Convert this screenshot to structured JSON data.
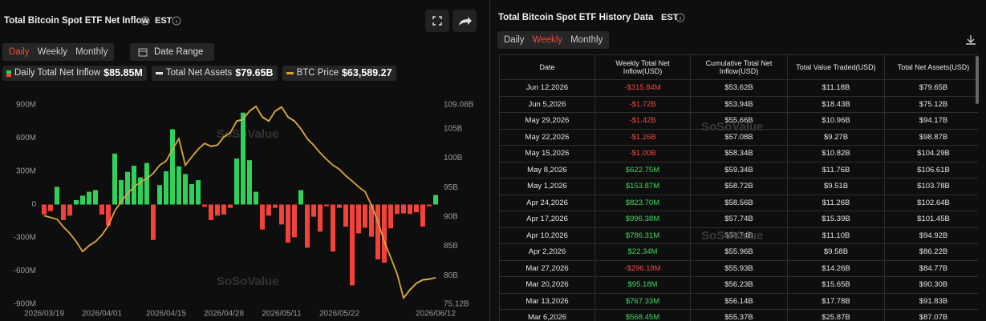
{
  "left_panel": {
    "title": "Total Bitcoin Spot ETF Net Inflow",
    "timezone": "EST",
    "tabs": [
      "Daily",
      "Weekly",
      "Monthly"
    ],
    "active_tab": 0,
    "date_range": "Date Range",
    "watermark": "SoSoValue"
  },
  "chart_data": {
    "type": "bar-line",
    "categories": [
      "2026/03/19",
      null,
      null,
      null,
      null,
      null,
      null,
      null,
      null,
      "2026/04/01",
      null,
      null,
      null,
      null,
      null,
      null,
      null,
      null,
      null,
      "2026/04/15",
      null,
      null,
      null,
      null,
      null,
      null,
      null,
      null,
      "2026/04/28",
      null,
      null,
      null,
      null,
      null,
      null,
      null,
      null,
      "2026/05/11",
      null,
      null,
      null,
      null,
      null,
      null,
      null,
      null,
      "2026/05/22",
      null,
      null,
      null,
      null,
      null,
      null,
      null,
      null,
      null,
      null,
      null,
      null,
      null,
      null,
      "2026/06/12"
    ],
    "series": [
      {
        "name": "Daily Total Net Inflow",
        "legend_value": "$85.85M",
        "color": "#2fd15a",
        "negative_color": "#f2423a",
        "values": [
          -90,
          -60,
          160,
          -140,
          -100,
          40,
          80,
          115,
          130,
          -90,
          -190,
          460,
          220,
          295,
          350,
          245,
          375,
          -320,
          175,
          300,
          680,
          345,
          275,
          185,
          220,
          -20,
          -140,
          -100,
          -90,
          -30,
          415,
          830,
          400,
          115,
          -225,
          -100,
          -30,
          -180,
          -345,
          -295,
          130,
          -390,
          -110,
          -245,
          -15,
          -425,
          -30,
          -200,
          -730,
          -260,
          -210,
          -290,
          -495,
          -525,
          -215,
          -85,
          -80,
          -85,
          -70,
          -200,
          -15,
          85.85
        ]
      },
      {
        "name": "Total Net Assets",
        "legend_value": "$79.65B",
        "color": "#e6e6e6",
        "axis": "y2",
        "values": [
          90.2,
          89.9,
          89.6,
          88.3,
          87.2,
          85.8,
          84.1,
          85.1,
          85.8,
          86.9,
          88.5,
          91.0,
          92.6,
          94.0,
          95.1,
          95.9,
          96.5,
          97.4,
          98.8,
          99.5,
          101.5,
          103.3,
          98.8,
          100.2,
          101.5,
          102.5,
          102.0,
          102.2,
          103.6,
          104.3,
          106.3,
          106.6,
          108.0,
          108.8,
          107.0,
          106.3,
          108.0,
          108.7,
          107.0,
          106.3,
          105.0,
          103.3,
          102.2,
          100.9,
          99.8,
          98.8,
          98.1,
          97.0,
          96.1,
          95.1,
          94.3,
          92.0,
          89.2,
          85.8,
          83.1,
          80.3,
          76.2,
          77.6,
          78.7,
          79.3,
          79.4,
          79.65
        ]
      },
      {
        "name": "BTC Price",
        "legend_value": "$63,589.27",
        "color": "#d9a12b",
        "axis": "y3",
        "values": [
          71980,
          71740,
          71500,
          70460,
          69590,
          68470,
          67110,
          67910,
          68470,
          69350,
          70620,
          72620,
          73890,
          75010,
          75890,
          76530,
          77010,
          77730,
          78840,
          79400,
          81000,
          82430,
          78840,
          79960,
          81000,
          81800,
          81400,
          81560,
          82670,
          83230,
          84830,
          85070,
          86180,
          86820,
          85390,
          84830,
          86180,
          86740,
          85390,
          84830,
          83790,
          82430,
          81560,
          80520,
          79640,
          78840,
          78280,
          77410,
          76690,
          75890,
          75250,
          73420,
          71180,
          68470,
          66310,
          64080,
          60810,
          61920,
          62800,
          63280,
          63360,
          63589.27
        ]
      }
    ],
    "ylim": [
      -900,
      900
    ],
    "yticks": [
      {
        "value": 900,
        "label": "900M"
      },
      {
        "value": 600,
        "label": "600M"
      },
      {
        "value": 300,
        "label": "300M"
      },
      0,
      {
        "value": -300,
        "label": "-300M"
      },
      {
        "value": -600,
        "label": "-600M"
      },
      {
        "value": -900,
        "label": "-900M"
      }
    ],
    "y2lim": [
      75.12,
      109.08
    ],
    "y2ticks": [
      {
        "value": 109.08,
        "label": "109.08B"
      },
      {
        "value": 105,
        "label": "105B"
      },
      {
        "value": 100,
        "label": "100B"
      },
      {
        "value": 95,
        "label": "95B"
      },
      {
        "value": 90,
        "label": "90B"
      },
      {
        "value": 85,
        "label": "85B"
      },
      {
        "value": 80,
        "label": "80B"
      },
      {
        "value": 75.12,
        "label": "75.12B"
      }
    ],
    "y3lim": [
      60000,
      87000
    ],
    "grid": false
  },
  "right_panel": {
    "title": "Total Bitcoin Spot ETF History Data",
    "timezone": "EST",
    "tabs": [
      "Daily",
      "Weekly",
      "Monthly"
    ],
    "active_tab": 1,
    "watermark": "SoSoValue",
    "table": {
      "headers": [
        "Date",
        "Weekly Total Net Inflow(USD)",
        "Cumulative Total Net Inflow(USD)",
        "Total Value Traded(USD)",
        "Total Net Assets(USD)"
      ],
      "rows": [
        [
          "Jun 12,2026",
          "-$315.84M",
          "$53.62B",
          "$11.18B",
          "$79.65B"
        ],
        [
          "Jun 5,2026",
          "-$1.72B",
          "$53.94B",
          "$18.43B",
          "$75.12B"
        ],
        [
          "May 29,2026",
          "-$1.42B",
          "$55.66B",
          "$10.96B",
          "$94.17B"
        ],
        [
          "May 22,2026",
          "-$1.26B",
          "$57.08B",
          "$9.27B",
          "$98.87B"
        ],
        [
          "May 15,2026",
          "-$1.00B",
          "$58.34B",
          "$10.82B",
          "$104.29B"
        ],
        [
          "May 8,2026",
          "$622.75M",
          "$59.34B",
          "$11.76B",
          "$106.61B"
        ],
        [
          "May 1,2026",
          "$153.87M",
          "$58.72B",
          "$9.51B",
          "$103.78B"
        ],
        [
          "Apr 24,2026",
          "$823.70M",
          "$58.56B",
          "$11.26B",
          "$102.64B"
        ],
        [
          "Apr 17,2026",
          "$996.38M",
          "$57.74B",
          "$15.39B",
          "$101.45B"
        ],
        [
          "Apr 10,2026",
          "$786.31M",
          "$56.74B",
          "$11.10B",
          "$94.92B"
        ],
        [
          "Apr 2,2026",
          "$22.34M",
          "$55.96B",
          "$9.58B",
          "$86.22B"
        ],
        [
          "Mar 27,2026",
          "-$296.18M",
          "$55.93B",
          "$14.26B",
          "$84.77B"
        ],
        [
          "Mar 20,2026",
          "$95.18M",
          "$56.23B",
          "$15.65B",
          "$90.30B"
        ],
        [
          "Mar 13,2026",
          "$767.33M",
          "$56.14B",
          "$17.78B",
          "$91.83B"
        ],
        [
          "Mar 6,2026",
          "$568.45M",
          "$55.37B",
          "$25.87B",
          "$87.07B"
        ]
      ]
    }
  }
}
